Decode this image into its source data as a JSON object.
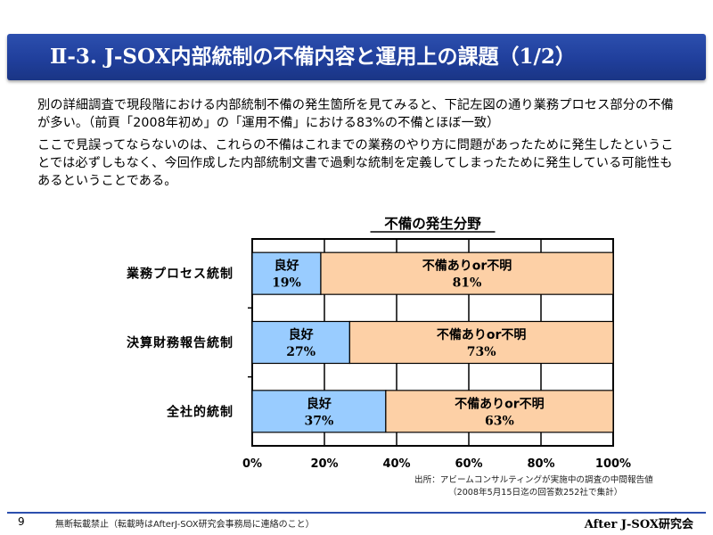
{
  "title": "Ⅱ-3. J-SOX内部統制の不備内容と運用上の課題（1/2）",
  "paragraphs": [
    "別の詳細調査で現段階における内部統制不備の発生箇所を見てみると、下記左図の通り業務プロセス部分の不備が多い。（前頁「2008年初め」の「運用不備」における83%の不備とほぼ一致）",
    "ここで見誤ってならないのは、これらの不備はこれまでの業務のやり方に問題があったために発生したということでは必ずしもなく、今回作成した内部統制文書で過剰な統制を定義してしまったために発生している可能性もあるということである。"
  ],
  "chart_data": {
    "type": "bar",
    "orientation": "horizontal",
    "stacked": true,
    "title": "不備の発生分野",
    "categories": [
      "業務プロセス統制",
      "決算財務報告統制",
      "全社的統制"
    ],
    "series": [
      {
        "name": "良好",
        "values": [
          19,
          27,
          37
        ],
        "color": "#99ccff"
      },
      {
        "name": "不備ありor不明",
        "values": [
          81,
          73,
          63
        ],
        "color": "#fdd0a6"
      }
    ],
    "xlim": [
      0,
      100
    ],
    "x_ticks": [
      "0%",
      "20%",
      "40%",
      "60%",
      "80%",
      "100%"
    ],
    "value_suffix": "%",
    "grid": true,
    "legend": "none"
  },
  "source": {
    "line1": "出所：アビームコンサルティングが実施中の調査の中間報告値",
    "line2": "（2008年5月15日迄の回答数252社で集計）"
  },
  "footer": {
    "page": "9",
    "note": "無断転載禁止（転載時はAfterJ-SOX研究会事務局に連絡のこと）",
    "org": "After J-SOX研究会"
  },
  "colors": {
    "title_bar": "#2c4fae",
    "good": "#99ccff",
    "deficient": "#fdd0a6",
    "plot_background": "#ffffff"
  }
}
